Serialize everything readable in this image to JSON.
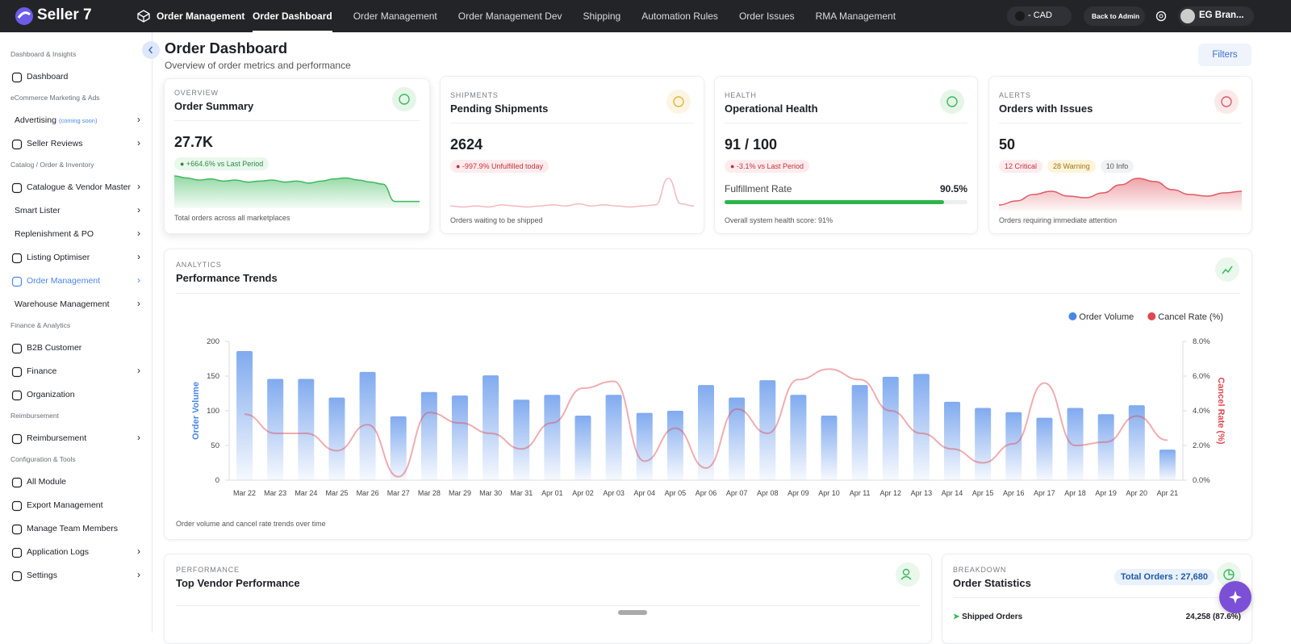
{
  "topbar": {
    "brand": "Seller 7",
    "module": "Order Management",
    "nav": [
      {
        "label": "Order Dashboard",
        "active": true
      },
      {
        "label": "Order Management"
      },
      {
        "label": "Order Management Dev"
      },
      {
        "label": "Shipping"
      },
      {
        "label": "Automation Rules"
      },
      {
        "label": "Order Issues"
      },
      {
        "label": "RMA Management"
      }
    ],
    "currency": "- CAD",
    "back": "Back to Admin",
    "user": "EG Bran..."
  },
  "sidebar": {
    "sections": [
      {
        "title": "Dashboard & Insights",
        "items": [
          {
            "label": "Dashboard",
            "icon": true
          }
        ]
      },
      {
        "title": "eCommerce Marketing & Ads",
        "items": [
          {
            "label": "Advertising",
            "tag": "(coming soon)",
            "chevron": true
          },
          {
            "label": "Seller Reviews",
            "icon": true,
            "chevron": true
          }
        ]
      },
      {
        "title": "Catalog / Order & Inventory",
        "items": [
          {
            "label": "Catalogue & Vendor Master",
            "icon": true,
            "chevron": true
          },
          {
            "label": "Smart Lister",
            "chevron": true
          },
          {
            "label": "Replenishment & PO",
            "chevron": true
          },
          {
            "label": "Listing Optimiser",
            "icon": true,
            "chevron": true
          },
          {
            "label": "Order Management",
            "icon": true,
            "chevron": true,
            "active": true
          },
          {
            "label": "Warehouse Management",
            "chevron": true
          }
        ]
      },
      {
        "title": "Finance & Analytics",
        "items": [
          {
            "label": "B2B Customer",
            "icon": true
          },
          {
            "label": "Finance",
            "icon": true,
            "chevron": true
          },
          {
            "label": "Organization",
            "icon": true
          }
        ]
      },
      {
        "title": "Reimbursement",
        "items": [
          {
            "label": "Reimbursement",
            "icon": true,
            "chevron": true
          }
        ]
      },
      {
        "title": "Configuration & Tools",
        "items": [
          {
            "label": "All Module",
            "icon": true
          },
          {
            "label": "Export Management",
            "icon": true
          },
          {
            "label": "Manage Team Members",
            "icon": true
          },
          {
            "label": "Application Logs",
            "icon": true,
            "chevron": true
          },
          {
            "label": "Settings",
            "icon": true,
            "chevron": true
          }
        ]
      }
    ]
  },
  "header": {
    "title": "Order Dashboard",
    "subtitle": "Overview of order metrics and performance",
    "filters": "Filters"
  },
  "cards": [
    {
      "eyebrow": "OVERVIEW",
      "title": "Order Summary",
      "value": "27.7K",
      "badges": [
        {
          "text": "+664.6% vs Last Period",
          "tone": "green"
        }
      ],
      "sparkline": [
        30,
        28,
        26,
        27,
        25,
        26,
        24,
        25,
        26,
        24,
        25,
        23,
        25,
        27,
        28,
        26,
        24,
        22,
        5,
        5,
        5
      ],
      "spark_color": "#3cb95a",
      "area": true,
      "footer": "Total orders across all marketplaces",
      "color": "#3cb95a"
    },
    {
      "eyebrow": "SHIPMENTS",
      "title": "Pending Shipments",
      "value": "2624",
      "badges": [
        {
          "text": "-997.9% Unfulfilled today",
          "tone": "red"
        }
      ],
      "sparkline": [
        3,
        2,
        3,
        2,
        4,
        3,
        2,
        3,
        4,
        3,
        5,
        3,
        4,
        3,
        2,
        3,
        4,
        30,
        5,
        3
      ],
      "spark_color": "#f2b8be",
      "area": false,
      "footer": "Orders waiting to be shipped",
      "color": "#e8b530"
    },
    {
      "eyebrow": "HEALTH",
      "title": "Operational Health",
      "value": "91 / 100",
      "badges": [
        {
          "text": "-3.1% vs Last Period",
          "tone": "red"
        }
      ],
      "progress": {
        "label": "Fulfillment Rate",
        "value": 90.5,
        "value_label": "90.5%",
        "lim": [
          0,
          100
        ]
      },
      "footer": "Overall system health score: 91%",
      "color": "#3cb95a"
    },
    {
      "eyebrow": "ALERTS",
      "title": "Orders with Issues",
      "value": "50",
      "badges": [
        {
          "text": "12 Critical",
          "tone": "red"
        },
        {
          "text": "28 Warning",
          "tone": "yellow"
        },
        {
          "text": "10 Info",
          "tone": "gray"
        }
      ],
      "sparkline": [
        5,
        10,
        18,
        22,
        16,
        14,
        20,
        30,
        38,
        34,
        24,
        18,
        16,
        20,
        22
      ],
      "spark_color": "#e05a63",
      "area": true,
      "footer": "Orders requiring immediate attention",
      "color": "#e05a63"
    }
  ],
  "chart_data": {
    "type": "bar-line",
    "eyebrow": "ANALYTICS",
    "title": "Performance Trends",
    "note": "Order volume and cancel rate trends over time",
    "ylabel": "Order Volume",
    "y2label": "Cancel Rate (%)",
    "categories": [
      "Mar 22",
      "Mar 23",
      "Mar 24",
      "Mar 25",
      "Mar 26",
      "Mar 27",
      "Mar 28",
      "Mar 29",
      "Mar 30",
      "Mar 31",
      "Apr 01",
      "Apr 02",
      "Apr 03",
      "Apr 04",
      "Apr 05",
      "Apr 06",
      "Apr 07",
      "Apr 08",
      "Apr 09",
      "Apr 10",
      "Apr 11",
      "Apr 12",
      "Apr 13",
      "Apr 14",
      "Apr 15",
      "Apr 16",
      "Apr 17",
      "Apr 18",
      "Apr 19",
      "Apr 20",
      "Apr 21"
    ],
    "series": [
      {
        "name": "Order Volume",
        "color": "#4a86e8",
        "values": [
          186,
          146,
          146,
          119,
          156,
          92,
          127,
          122,
          151,
          116,
          123,
          93,
          123,
          97,
          100,
          137,
          119,
          144,
          123,
          93,
          137,
          149,
          153,
          113,
          104,
          98,
          90,
          104,
          95,
          108,
          44
        ]
      },
      {
        "name": "Cancel Rate (%)",
        "color": "#e0474f",
        "axis": "y2",
        "values": [
          3.8,
          2.7,
          2.7,
          1.7,
          3.2,
          0.2,
          3.9,
          3.3,
          2.7,
          1.8,
          3.3,
          5.3,
          5.7,
          1.1,
          3.0,
          0.7,
          4.1,
          2.7,
          5.8,
          6.4,
          5.8,
          4.0,
          2.7,
          1.8,
          1.0,
          2.1,
          5.6,
          2.0,
          2.2,
          3.7,
          2.3
        ]
      }
    ],
    "ylim": [
      0,
      200
    ],
    "yticks": [
      0,
      50,
      100,
      150,
      200
    ],
    "y2lim": [
      0,
      8
    ],
    "y2ticks": [
      {
        "value": 0,
        "label": "0.0%"
      },
      {
        "value": 2,
        "label": "2.0%"
      },
      {
        "value": 4,
        "label": "4.0%"
      },
      {
        "value": 6,
        "label": "6.0%"
      },
      {
        "value": 8,
        "label": "8.0%"
      }
    ],
    "legend": "top-right"
  },
  "vendor": {
    "eyebrow": "PERFORMANCE",
    "title": "Top Vendor Performance"
  },
  "stats": {
    "eyebrow": "BREAKDOWN",
    "title": "Order Statistics",
    "total": "Total Orders : 27,680",
    "rows": [
      {
        "label": "Shipped Orders",
        "value": "24,258 (87.6%)"
      }
    ]
  }
}
